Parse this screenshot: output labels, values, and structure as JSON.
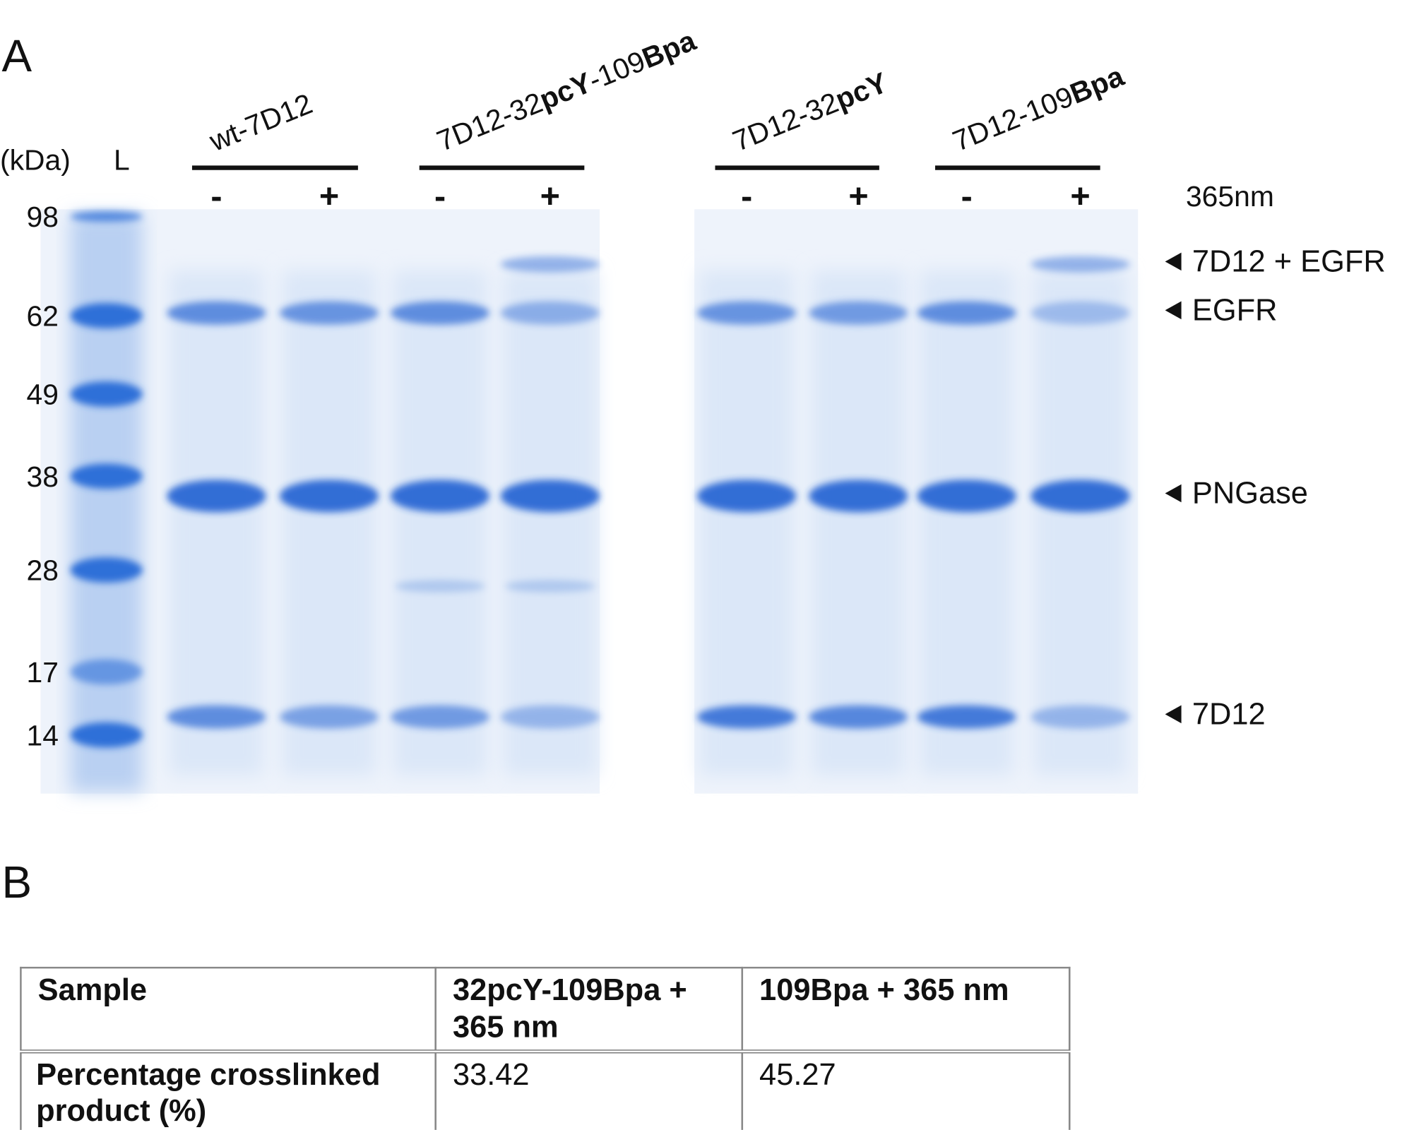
{
  "panel_a": {
    "label": "A",
    "unit_label": "(kDa)",
    "ladder_label": "L",
    "ladder": [
      98,
      62,
      49,
      38,
      28,
      17,
      14
    ],
    "groups": [
      {
        "parts": [
          {
            "text": "wt-7D12",
            "bold": false
          }
        ],
        "signs": [
          "-",
          "+"
        ]
      },
      {
        "parts": [
          {
            "text": "7D12-32",
            "bold": false
          },
          {
            "text": "pcY",
            "bold": true
          },
          {
            "text": "-109",
            "bold": false
          },
          {
            "text": "Bpa",
            "bold": true
          }
        ],
        "signs": [
          "-",
          "+"
        ]
      },
      {
        "parts": [
          {
            "text": "7D12-32",
            "bold": false
          },
          {
            "text": "pcY",
            "bold": true
          }
        ],
        "signs": [
          "-",
          "+"
        ]
      },
      {
        "parts": [
          {
            "text": "7D12-109",
            "bold": false
          },
          {
            "text": "Bpa",
            "bold": true
          }
        ],
        "signs": [
          "-",
          "+"
        ]
      }
    ],
    "wavelength_label": "365nm",
    "band_labels": [
      "7D12 + EGFR",
      "EGFR",
      "PNGase",
      "7D12"
    ]
  },
  "panel_b": {
    "label": "B",
    "table": {
      "header": [
        "Sample",
        "32pcY-109Bpa + 365 nm",
        "109Bpa + 365 nm"
      ],
      "rows": [
        [
          "Percentage crosslinked product (%)",
          "33.42",
          "45.27"
        ]
      ]
    }
  }
}
